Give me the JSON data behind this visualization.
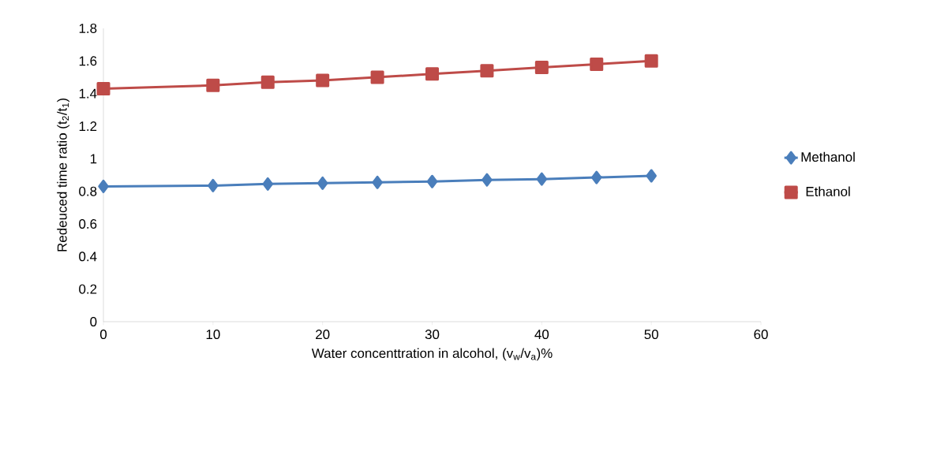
{
  "chart_data": {
    "type": "line",
    "xlabel": "Water concenttration in alcohol, (v$_{w}$/v$_{a}$)%",
    "ylabel": "Redeuced time ratio (t$_{2}$/t$_{1}$)",
    "x": [
      0,
      10,
      15,
      20,
      25,
      30,
      35,
      40,
      45,
      50
    ],
    "series": [
      {
        "name": "Methanol",
        "color": "#4a7ebb",
        "marker": "diamond",
        "values": [
          0.83,
          0.835,
          0.845,
          0.85,
          0.855,
          0.86,
          0.87,
          0.875,
          0.885,
          0.895
        ]
      },
      {
        "name": "Ethanol",
        "color": "#be4b48",
        "marker": "square",
        "values": [
          1.43,
          1.45,
          1.47,
          1.48,
          1.5,
          1.52,
          1.54,
          1.56,
          1.58,
          1.6
        ]
      }
    ],
    "xlim": [
      0,
      60
    ],
    "xticks": [
      0,
      10,
      20,
      30,
      40,
      50,
      60
    ],
    "ylim": [
      0,
      1.8
    ],
    "yticks": [
      0,
      0.2,
      0.4,
      0.6,
      0.8,
      1,
      1.2,
      1.4,
      1.6,
      1.8
    ],
    "grid": false,
    "legend": "right",
    "line_style": "solid"
  }
}
